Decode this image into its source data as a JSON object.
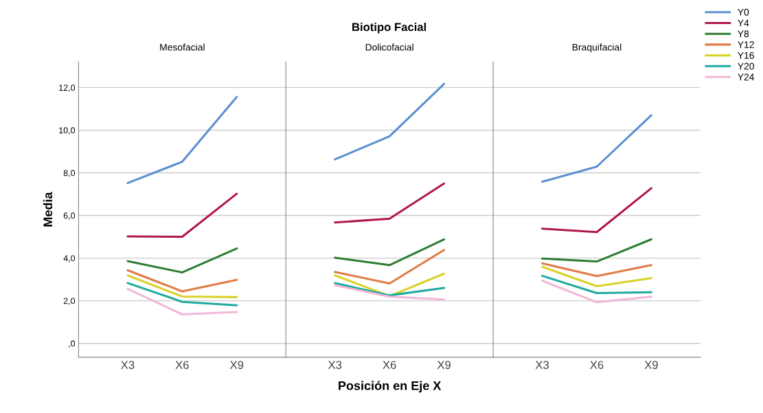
{
  "chart_data": [
    {
      "type": "line",
      "title": "Mesofacial",
      "ylabel": "Media",
      "annotations": [
        "Biotipo Facial"
      ],
      "categories": [
        "X3",
        "X6",
        "X9"
      ],
      "ylim": [
        -0.65,
        13.2
      ],
      "yticks": [
        {
          "value": 0,
          "label": ",0"
        },
        {
          "value": 2,
          "label": "2,0"
        },
        {
          "value": 4,
          "label": "4,0"
        },
        {
          "value": 6,
          "label": "6,0"
        },
        {
          "value": 8,
          "label": "8,0"
        },
        {
          "value": 10,
          "label": "10,0"
        },
        {
          "value": 12,
          "label": "12,0"
        }
      ],
      "grid": "y",
      "legend": "top right",
      "series": [
        {
          "name": "Y0",
          "color": "#5b8fd0",
          "values": [
            7.52,
            8.52,
            11.56
          ]
        },
        {
          "name": "Y4",
          "color": "#b0184a",
          "values": [
            5.02,
            5.0,
            7.02
          ]
        },
        {
          "name": "Y8",
          "color": "#2e7d32",
          "values": [
            3.86,
            3.33,
            4.45
          ]
        },
        {
          "name": "Y12",
          "color": "#e07b45",
          "values": [
            3.43,
            2.44,
            2.98
          ]
        },
        {
          "name": "Y16",
          "color": "#d9d22a",
          "values": [
            3.19,
            2.2,
            2.17
          ]
        },
        {
          "name": "Y20",
          "color": "#1eaaa0",
          "values": [
            2.83,
            1.95,
            1.79
          ]
        },
        {
          "name": "Y24",
          "color": "#f2b6d6",
          "values": [
            2.56,
            1.36,
            1.47
          ]
        }
      ]
    },
    {
      "type": "line",
      "title": "Dolicofacial",
      "xlabel": "Posición en Eje X",
      "categories": [
        "X3",
        "X6",
        "X9"
      ],
      "ylim": [
        -0.65,
        13.2
      ],
      "yticks": [
        0,
        2,
        4,
        6,
        8,
        10,
        12
      ],
      "tick_labels": "x",
      "grid": "y",
      "legend": false,
      "series": [
        {
          "color": "#5b8fd0",
          "values": [
            8.63,
            9.71,
            12.17
          ]
        },
        {
          "color": "#b0184a",
          "values": [
            5.67,
            5.85,
            7.5
          ]
        },
        {
          "color": "#2e7d32",
          "values": [
            4.02,
            3.67,
            4.88
          ]
        },
        {
          "color": "#e07b45",
          "values": [
            3.35,
            2.81,
            4.38
          ]
        },
        {
          "color": "#d9d22a",
          "values": [
            3.19,
            2.22,
            3.27
          ]
        },
        {
          "color": "#1eaaa0",
          "values": [
            2.83,
            2.25,
            2.6
          ]
        },
        {
          "color": "#f2b6d6",
          "values": [
            2.73,
            2.19,
            2.06
          ]
        }
      ]
    },
    {
      "type": "line",
      "title": "Braquifacial",
      "categories": [
        "X3",
        "X6",
        "X9"
      ],
      "ylim": [
        -0.65,
        13.2
      ],
      "yticks": [
        0,
        2,
        4,
        6,
        8,
        10,
        12
      ],
      "tick_labels": "x",
      "grid": "y",
      "series": [
        {
          "color": "#5b8fd0",
          "values": [
            7.58,
            8.29,
            10.7
          ]
        },
        {
          "color": "#b0184a",
          "values": [
            5.38,
            5.22,
            7.28
          ]
        },
        {
          "color": "#2e7d32",
          "values": [
            3.98,
            3.84,
            4.88
          ]
        },
        {
          "color": "#e07b45",
          "values": [
            3.75,
            3.16,
            3.67
          ]
        },
        {
          "color": "#d9d22a",
          "values": [
            3.59,
            2.68,
            3.06
          ]
        },
        {
          "color": "#1eaaa0",
          "values": [
            3.17,
            2.36,
            2.4
          ]
        },
        {
          "color": "#f2b6d6",
          "values": [
            2.94,
            1.93,
            2.19
          ]
        }
      ]
    }
  ]
}
